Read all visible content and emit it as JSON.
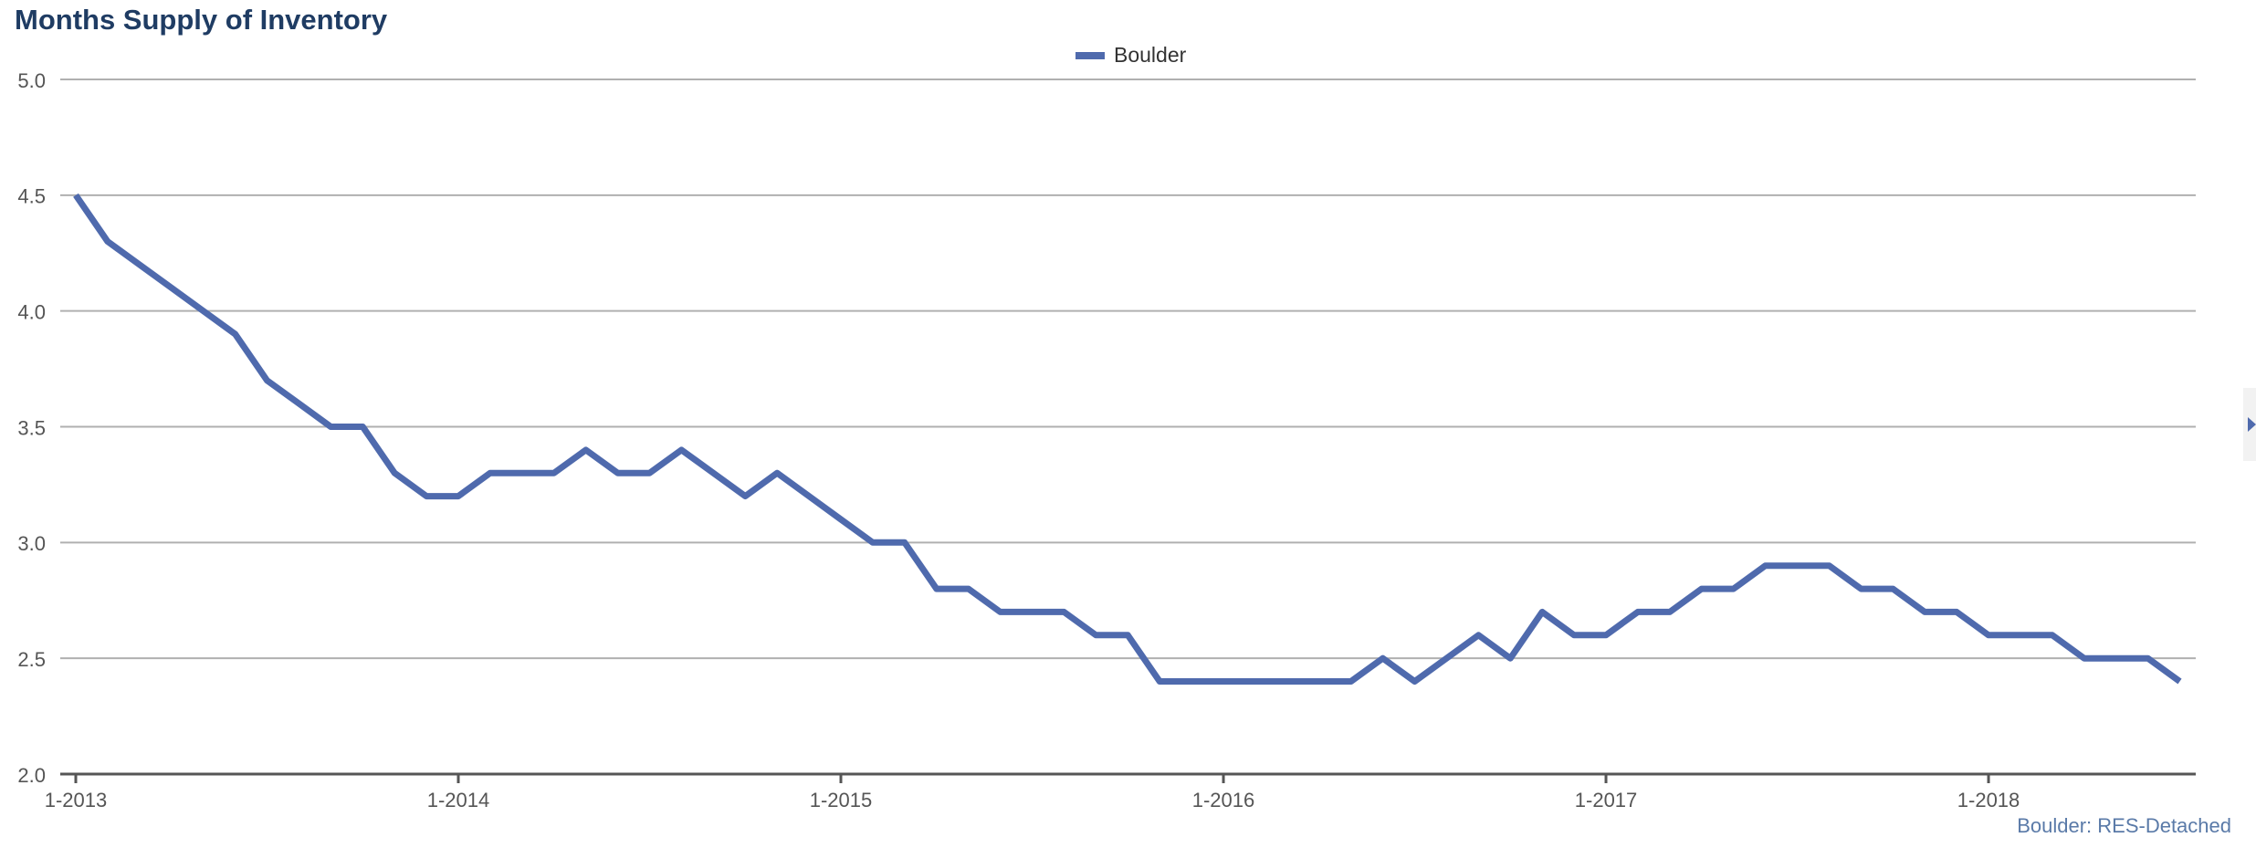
{
  "chart_data": {
    "type": "line",
    "title": "Months Supply of Inventory",
    "categories": [
      "1-2013",
      null,
      null,
      null,
      null,
      null,
      null,
      null,
      null,
      null,
      null,
      null,
      "1-2014",
      null,
      null,
      null,
      null,
      null,
      null,
      null,
      null,
      null,
      null,
      null,
      "1-2015",
      null,
      null,
      null,
      null,
      null,
      null,
      null,
      null,
      null,
      null,
      null,
      "1-2016",
      null,
      null,
      null,
      null,
      null,
      null,
      null,
      null,
      null,
      null,
      null,
      "1-2017",
      null,
      null,
      null,
      null,
      null,
      null,
      null,
      null,
      null,
      null,
      null,
      "1-2018",
      null,
      null,
      null,
      null,
      null,
      null
    ],
    "series": [
      {
        "name": "Boulder",
        "color": "#4f6aad",
        "values": [
          4.5,
          4.3,
          4.2,
          4.1,
          4.0,
          3.9,
          3.7,
          3.6,
          3.5,
          3.5,
          3.3,
          3.2,
          3.2,
          3.3,
          3.3,
          3.3,
          3.4,
          3.3,
          3.3,
          3.4,
          3.3,
          3.2,
          3.3,
          3.2,
          3.1,
          3.0,
          3.0,
          2.8,
          2.8,
          2.7,
          2.7,
          2.7,
          2.6,
          2.6,
          2.4,
          2.4,
          2.4,
          2.4,
          2.4,
          2.4,
          2.4,
          2.5,
          2.4,
          2.5,
          2.6,
          2.5,
          2.7,
          2.6,
          2.6,
          2.7,
          2.7,
          2.8,
          2.8,
          2.9,
          2.9,
          2.9,
          2.8,
          2.8,
          2.7,
          2.7,
          2.6,
          2.6,
          2.6,
          2.5,
          2.5,
          2.5,
          2.4
        ]
      }
    ],
    "ylim": [
      2.0,
      5.0
    ],
    "yticks": [
      {
        "value": 2.0,
        "label": "2.0"
      },
      2.5,
      {
        "value": 3.0,
        "label": "3.0"
      },
      3.5,
      {
        "value": 4.0,
        "label": "4.0"
      },
      4.5,
      {
        "value": 5.0,
        "label": "5.0"
      }
    ],
    "grid": true,
    "legend": "top",
    "source": "Boulder: RES-Detached"
  }
}
